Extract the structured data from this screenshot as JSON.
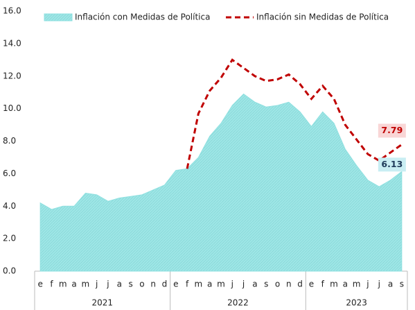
{
  "chart_data": {
    "type": "area-line",
    "categories": [
      "e",
      "f",
      "m",
      "a",
      "m",
      "j",
      "j",
      "a",
      "s",
      "o",
      "n",
      "d",
      "e",
      "f",
      "m",
      "a",
      "m",
      "j",
      "j",
      "a",
      "s",
      "o",
      "n",
      "d",
      "e",
      "f",
      "m",
      "a",
      "m",
      "j",
      "j",
      "a",
      "s"
    ],
    "groups": [
      "2021",
      "2022",
      "2023"
    ],
    "series": [
      {
        "name": "Inflación con Medidas de Política",
        "color": "#8fe0e0",
        "kind": "area",
        "values": [
          4.2,
          3.8,
          4.0,
          4.0,
          4.8,
          4.7,
          4.3,
          4.5,
          4.6,
          4.7,
          5.0,
          5.3,
          6.2,
          6.3,
          7.0,
          8.3,
          9.1,
          10.2,
          10.9,
          10.4,
          10.1,
          10.2,
          10.4,
          9.8,
          8.9,
          9.8,
          9.1,
          7.5,
          6.5,
          5.6,
          5.2,
          5.6,
          6.13
        ]
      },
      {
        "name": "Inflación sin Medidas de Política",
        "color": "#c00000",
        "kind": "line",
        "values": [
          null,
          null,
          null,
          null,
          null,
          null,
          null,
          null,
          null,
          null,
          null,
          null,
          null,
          6.3,
          9.7,
          11.1,
          11.9,
          13.0,
          12.5,
          12.0,
          11.7,
          11.8,
          12.1,
          11.5,
          10.6,
          11.4,
          10.6,
          9.0,
          8.1,
          7.2,
          6.8,
          7.3,
          7.79
        ]
      }
    ],
    "ylim": [
      0,
      16
    ],
    "yticks": [
      {
        "value": 0,
        "label": "0.0"
      },
      {
        "value": 2,
        "label": "2.0"
      },
      {
        "value": 4,
        "label": "4.0"
      },
      {
        "value": 6,
        "label": "6.0"
      },
      {
        "value": 8,
        "label": "8.0"
      },
      {
        "value": 10,
        "label": "10.0"
      },
      {
        "value": 12,
        "label": "12.0"
      },
      {
        "value": 14,
        "label": "14.0"
      },
      {
        "value": 16,
        "label": "16.0"
      }
    ]
  }
}
